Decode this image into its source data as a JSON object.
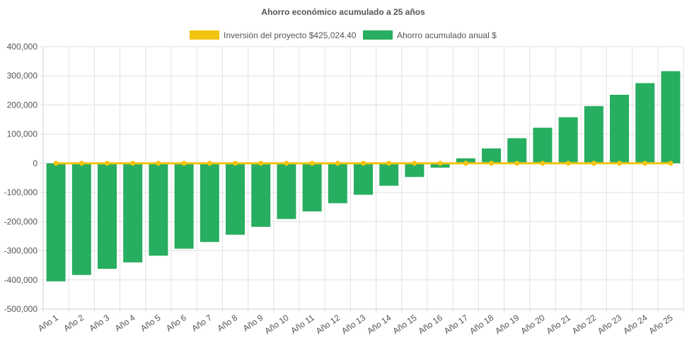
{
  "chart_data": {
    "type": "bar",
    "title": "Ahorro económico acumulado a 25 años",
    "legend_position": "top",
    "grid": true,
    "categories": [
      "Año 1",
      "Año 2",
      "Año 3",
      "Año 4",
      "Año 5",
      "Año 6",
      "Año 7",
      "Año 8",
      "Año 9",
      "Año 10",
      "Año 11",
      "Año 12",
      "Año 13",
      "Año 14",
      "Año 15",
      "Año 16",
      "Año 17",
      "Año 18",
      "Año 19",
      "Año 20",
      "Año 21",
      "Año 22",
      "Año 23",
      "Año 24",
      "Año 25"
    ],
    "ylim": [
      -500000,
      400000
    ],
    "yticks": [
      400000,
      300000,
      200000,
      100000,
      0,
      -100000,
      -200000,
      -300000,
      -400000,
      -500000
    ],
    "ytick_labels": [
      "400,000",
      "300,000",
      "200,000",
      "100,000",
      "0",
      "-100,000",
      "-200,000",
      "-300,000",
      "-400,000",
      "-500,000"
    ],
    "series": [
      {
        "name": "Inversión del proyecto $425,024.40",
        "type": "line",
        "color": "#f1c40f",
        "values": [
          0,
          0,
          0,
          0,
          0,
          0,
          0,
          0,
          0,
          0,
          0,
          0,
          0,
          0,
          0,
          0,
          0,
          0,
          0,
          0,
          0,
          0,
          0,
          0,
          0
        ]
      },
      {
        "name": "Ahorro acumulado anual $",
        "type": "bar",
        "color": "#27ae60",
        "values": [
          -405000,
          -383000,
          -362000,
          -340000,
          -317000,
          -293000,
          -270000,
          -245000,
          -218000,
          -191000,
          -165000,
          -137000,
          -108000,
          -77000,
          -47000,
          -15000,
          17000,
          51000,
          86000,
          122000,
          158000,
          196000,
          235000,
          275000,
          316000
        ]
      }
    ]
  }
}
